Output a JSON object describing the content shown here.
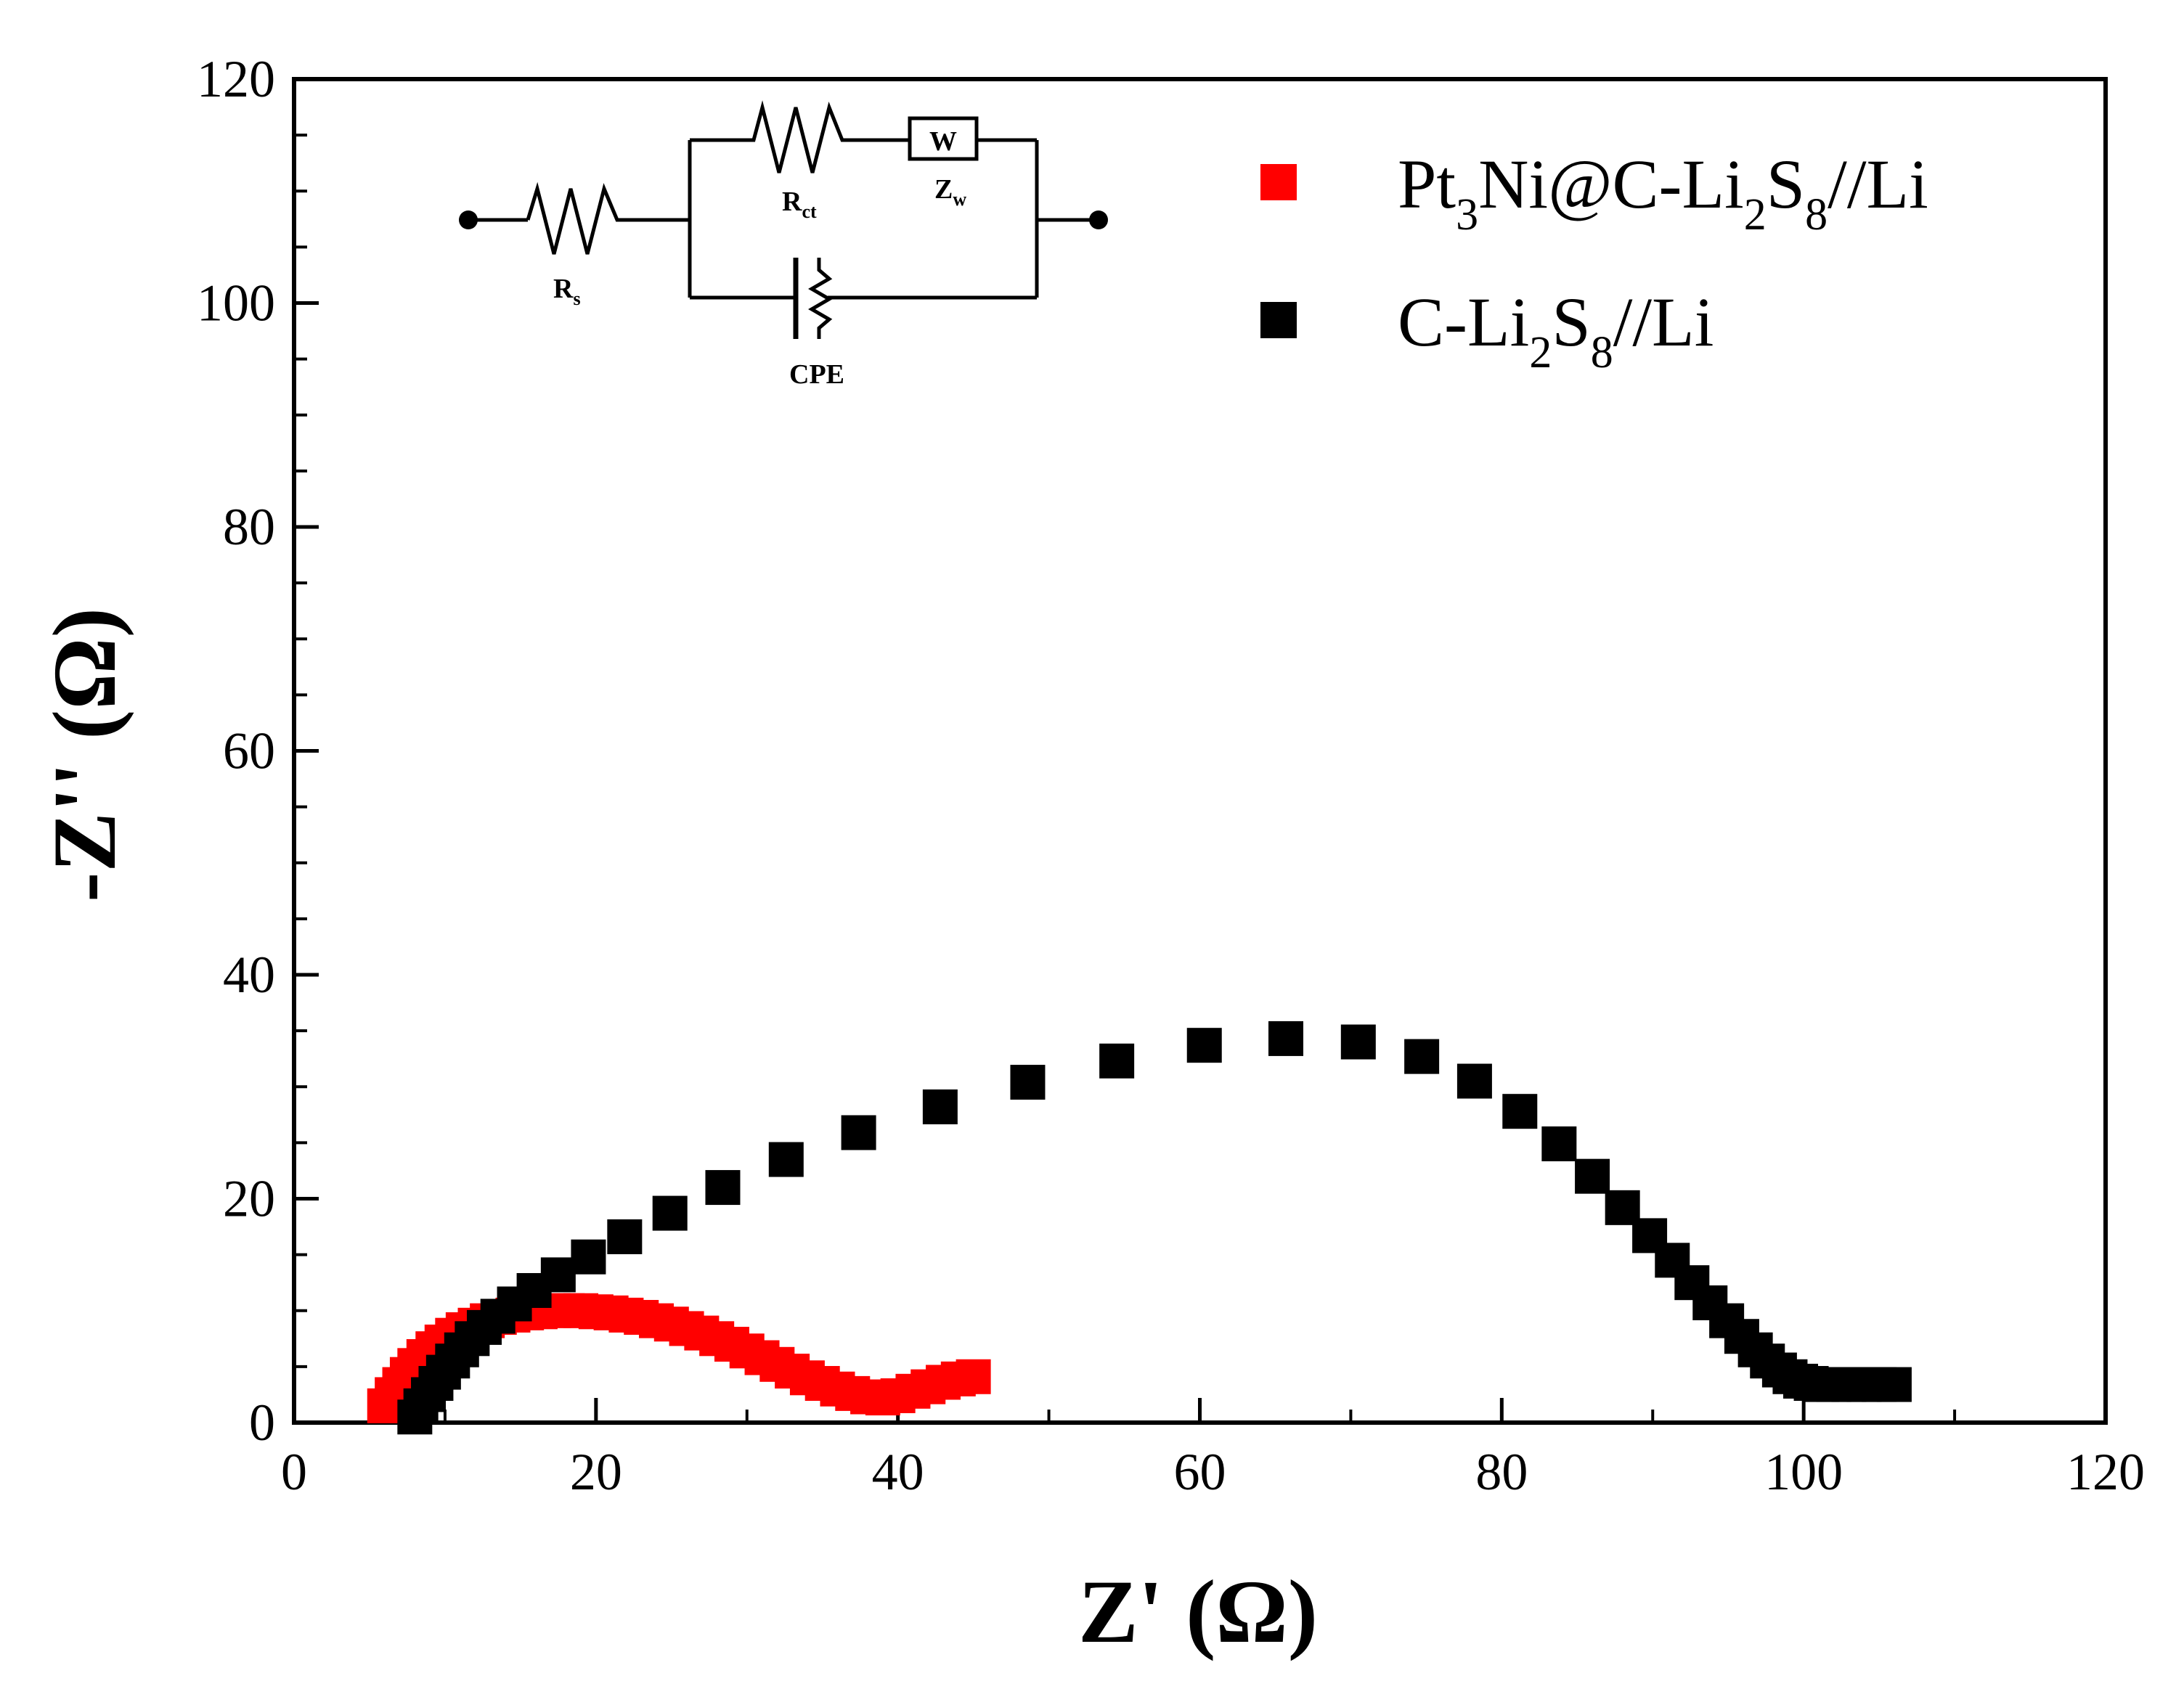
{
  "chart_data": {
    "type": "scatter",
    "xlabel": "Z' (Ω)",
    "ylabel": "-Z'' (Ω)",
    "xlim": [
      0,
      120
    ],
    "ylim": [
      0,
      120
    ],
    "xticks": [
      "0",
      "20",
      "40",
      "60",
      "80",
      "100",
      "120"
    ],
    "yticks": [
      "0",
      "20",
      "40",
      "60",
      "80",
      "100",
      "120"
    ],
    "grid": false,
    "legend_position": "top-right",
    "series": [
      {
        "name": "Pt3Ni@C-Li2S8//Li",
        "legend": {
          "base1": "Pt",
          "sub1": "3",
          "mid": "Ni@C-Li",
          "sub2": "2",
          "mid2": "S",
          "sub3": "8",
          "end": "//Li"
        },
        "color": "#ff0000",
        "marker": "square",
        "x": [
          6,
          6.5,
          7,
          7.5,
          8,
          8.6,
          9.2,
          9.8,
          10.5,
          11.2,
          12,
          12.8,
          13.6,
          14.5,
          15.4,
          16.3,
          17.2,
          18.1,
          19,
          20,
          21,
          22,
          23,
          24,
          25,
          26,
          27,
          28,
          29,
          30,
          31,
          32,
          33,
          34,
          35,
          36,
          37,
          38,
          39,
          40,
          41,
          42,
          43,
          44,
          45
        ],
        "y": [
          1.5,
          2.5,
          3.4,
          4.3,
          5.1,
          5.9,
          6.6,
          7.2,
          7.8,
          8.3,
          8.7,
          9.1,
          9.4,
          9.6,
          9.8,
          9.9,
          10,
          10,
          10,
          9.9,
          9.8,
          9.6,
          9.4,
          9.1,
          8.8,
          8.4,
          8,
          7.5,
          7,
          6.4,
          5.8,
          5.2,
          4.6,
          4,
          3.5,
          3,
          2.6,
          2.3,
          2.2,
          2.4,
          2.8,
          3.2,
          3.6,
          3.9,
          4.1
        ]
      },
      {
        "name": "C-Li2S8//Li",
        "legend": {
          "base1": "C-Li",
          "sub1": "2",
          "mid": "S",
          "sub2": "8",
          "end": "//Li"
        },
        "color": "#000000",
        "marker": "square",
        "x": [
          8.0,
          8.4,
          8.9,
          9.4,
          9.9,
          10.5,
          11.1,
          11.8,
          12.6,
          13.5,
          14.6,
          15.9,
          17.5,
          19.5,
          21.9,
          24.9,
          28.4,
          32.6,
          37.4,
          42.8,
          48.6,
          54.5,
          60.3,
          65.7,
          70.5,
          74.7,
          78.2,
          81.2,
          83.8,
          86.0,
          88.0,
          89.8,
          91.3,
          92.6,
          93.8,
          94.9,
          95.9,
          96.8,
          97.6,
          98.4,
          99.1,
          99.8,
          100.5,
          101.2,
          102,
          103,
          104,
          105,
          106
        ],
        "y": [
          0.5,
          1.5,
          2.5,
          3.5,
          4.5,
          5.5,
          6.5,
          7.5,
          8.5,
          9.5,
          10.6,
          11.8,
          13.2,
          14.8,
          16.6,
          18.7,
          21.0,
          23.5,
          25.9,
          28.2,
          30.4,
          32.3,
          33.7,
          34.3,
          34.0,
          32.7,
          30.5,
          27.8,
          24.9,
          22.0,
          19.2,
          16.7,
          14.5,
          12.5,
          10.7,
          9.1,
          7.7,
          6.5,
          5.5,
          4.7,
          4.1,
          3.7,
          3.5,
          3.4,
          3.4,
          3.4,
          3.4,
          3.4,
          3.4
        ]
      }
    ],
    "inset": {
      "labels": {
        "rs": "R",
        "rs_sub": "s",
        "rct": "R",
        "rct_sub": "ct",
        "w": "W",
        "zw": "Z",
        "zw_sub": "w",
        "cpe": "CPE"
      }
    }
  }
}
